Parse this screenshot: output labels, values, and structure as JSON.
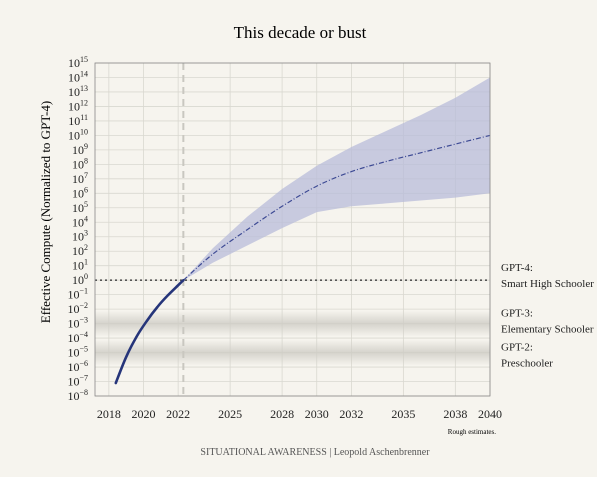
{
  "chart_data": {
    "type": "line",
    "title": "This decade or bust",
    "ylabel": "Effective Compute (Normalized to GPT-4)",
    "xlabel": "",
    "y_scale": "log10",
    "ylim_exp": [
      -8,
      15
    ],
    "xlim": [
      2017.2,
      2040
    ],
    "xticks": [
      2018,
      2020,
      2022,
      2025,
      2028,
      2030,
      2032,
      2035,
      2038,
      2040
    ],
    "grid": true,
    "historical": {
      "x": [
        2018.4,
        2019.0,
        2019.6,
        2020.2,
        2020.8,
        2021.4,
        2022.0,
        2022.3
      ],
      "y_exp": [
        -7.1,
        -5.3,
        -3.9,
        -2.8,
        -1.85,
        -1.05,
        -0.35,
        0.0
      ]
    },
    "projection_median": {
      "x": [
        2022.3,
        2024,
        2026,
        2028,
        2030,
        2032,
        2034,
        2036,
        2038,
        2040
      ],
      "y_exp": [
        0.0,
        1.8,
        3.5,
        5.1,
        6.5,
        7.5,
        8.2,
        8.8,
        9.4,
        10.0
      ]
    },
    "projection_band": {
      "x": [
        2022.3,
        2024,
        2026,
        2028,
        2030,
        2032,
        2034,
        2036,
        2038,
        2040
      ],
      "upper_exp": [
        0.0,
        2.2,
        4.4,
        6.3,
        7.9,
        9.2,
        10.3,
        11.4,
        12.6,
        14.0
      ],
      "lower_exp": [
        0.0,
        1.2,
        2.4,
        3.6,
        4.7,
        5.1,
        5.3,
        5.5,
        5.7,
        6.0
      ]
    },
    "reference_levels": [
      {
        "y_exp": 0,
        "line1": "GPT-4:",
        "line2": "Smart High Schooler"
      },
      {
        "y_exp": -3,
        "line1": "GPT-3:",
        "line2": "Elementary Schooler"
      },
      {
        "y_exp": -5,
        "line1": "GPT-2:",
        "line2": "Preschooler"
      }
    ],
    "vline_x": 2022.3,
    "annotation": "Rough estimates.",
    "colors": {
      "historical": "#26357a",
      "projection": "#3d4a94",
      "band": "#b8bcd9",
      "grid": "#d9d8d0",
      "background": "#f6f4ee"
    }
  },
  "footer": "SITUATIONAL AWARENESS | Leopold Aschenbrenner"
}
